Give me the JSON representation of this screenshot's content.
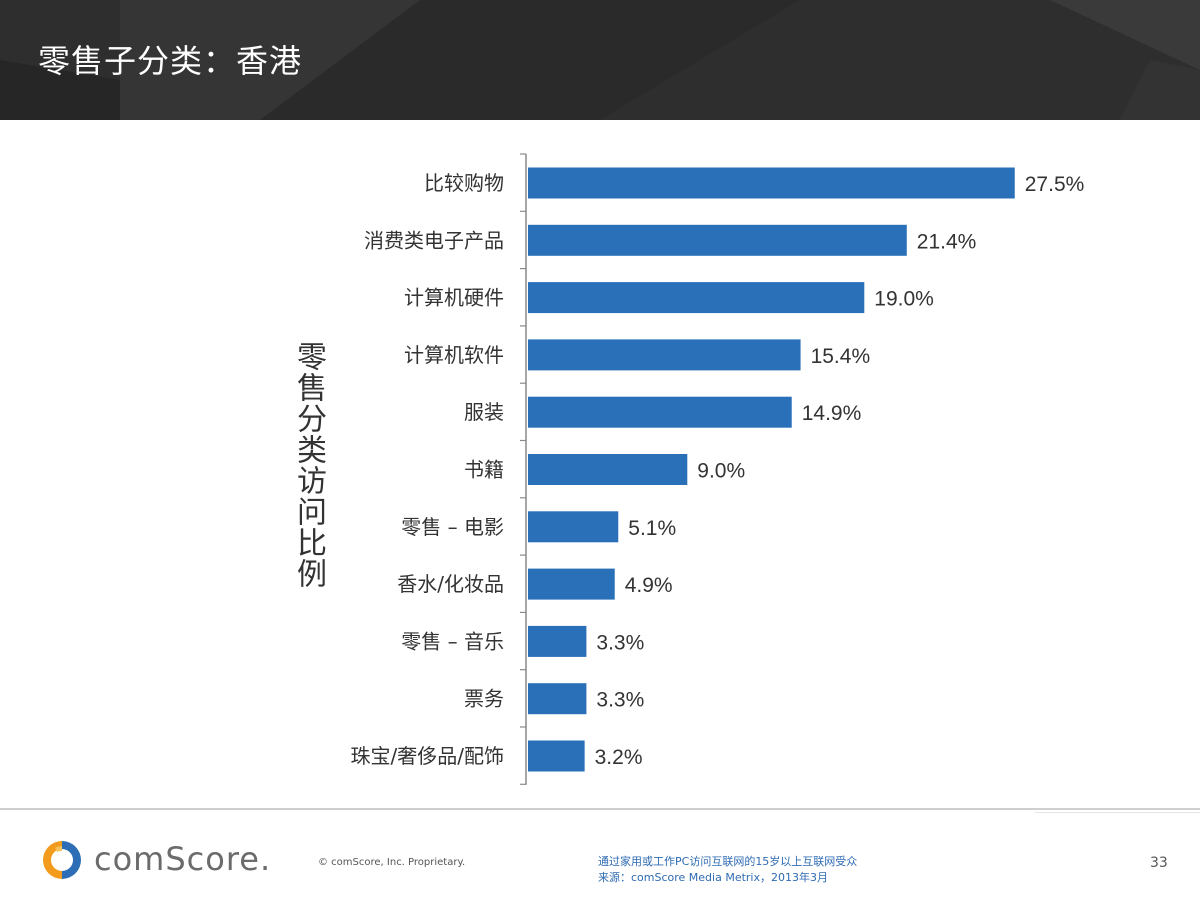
{
  "slide": {
    "title": "零售子分类：香港",
    "page_number": "33"
  },
  "footer": {
    "brand": "comScore.",
    "copyright": "© comScore, Inc.    Proprietary.",
    "note_line1": "通过家用或工作PC访问互联网的15岁以上互联网受众",
    "note_line2": "来源：comScore Media Metrix，2013年3月"
  },
  "colors": {
    "bar": "#2a70b9",
    "header": "#2e2e2e",
    "logo_orange": "#f29b1d",
    "logo_blue": "#2d6db5"
  },
  "chart_data": {
    "type": "bar",
    "orientation": "horizontal",
    "title": "零售子分类：香港",
    "xlabel": "",
    "ylabel": "零售分类访问比例",
    "categories": [
      "比较购物",
      "消费类电子产品",
      "计算机硬件",
      "计算机软件",
      "服装",
      "书籍",
      "零售 – 电影",
      "香水/化妆品",
      "零售 – 音乐",
      "票务",
      "珠宝/奢侈品/配饰"
    ],
    "values": [
      27.5,
      21.4,
      19.0,
      15.4,
      14.9,
      9.0,
      5.1,
      4.9,
      3.3,
      3.3,
      3.2
    ],
    "value_labels": [
      "27.5%",
      "21.4%",
      "19.0%",
      "15.4%",
      "14.9%",
      "9.0%",
      "5.1%",
      "4.9%",
      "3.3%",
      "3.3%",
      "3.2%"
    ],
    "xlim": [
      0,
      30
    ],
    "grid": false
  }
}
